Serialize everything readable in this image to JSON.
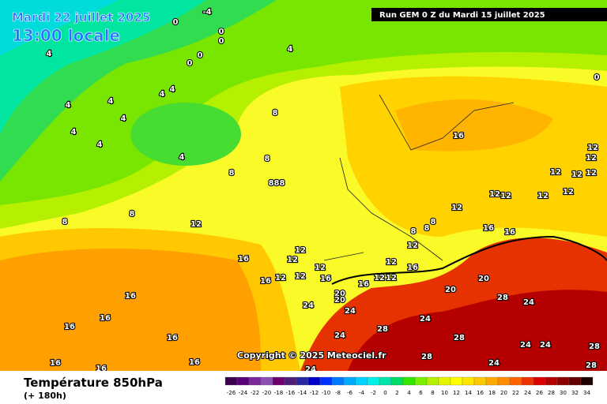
{
  "header": {
    "date": "Mardi 22 juillet 2025",
    "time": "13:00 locale",
    "run": "Run GEM 0 Z du Mardi 15 juillet 2025"
  },
  "copyright": "Copyright © 2025 Meteociel.fr",
  "legend": {
    "title": "Température 850hPa",
    "subtitle": "(+ 180h)",
    "values": [
      -26,
      -24,
      -22,
      -20,
      -18,
      -16,
      -14,
      -12,
      -10,
      -8,
      -6,
      -4,
      -2,
      0,
      2,
      4,
      6,
      8,
      10,
      12,
      14,
      16,
      18,
      20,
      22,
      24,
      26,
      28,
      30,
      32,
      34
    ],
    "colors": [
      "#3c0050",
      "#5a0078",
      "#78289a",
      "#8c50b4",
      "#6e006e",
      "#501e78",
      "#2828a0",
      "#0000c8",
      "#0032ff",
      "#0078ff",
      "#00aaff",
      "#00d2ff",
      "#00f0e6",
      "#00e6aa",
      "#00dc64",
      "#32e600",
      "#78f000",
      "#b4f000",
      "#e6f500",
      "#ffff00",
      "#ffe600",
      "#ffc800",
      "#ffaa00",
      "#ff8c00",
      "#ff6400",
      "#f03200",
      "#dc0000",
      "#b40000",
      "#8c0000",
      "#640000",
      "#1e0000"
    ]
  },
  "map_labels": [
    "-4",
    "0",
    "0",
    "0",
    "0",
    "0",
    "4",
    "4",
    "4",
    "4",
    "4",
    "4",
    "4",
    "4",
    "4",
    "4",
    "8",
    "8",
    "8",
    "8",
    "8",
    "888",
    "12",
    "12",
    "12",
    "12",
    "12",
    "12",
    "16",
    "16",
    "16",
    "16",
    "16",
    "16",
    "16",
    "16",
    "16",
    "16",
    "20",
    "20",
    "24",
    "24",
    "24",
    "28",
    "24",
    "28",
    "28",
    "24",
    "24",
    "24",
    "28",
    "24",
    "28",
    "28",
    "24",
    "20",
    "20",
    "16",
    "16",
    "16",
    "12",
    "12",
    "12",
    "12",
    "12",
    "12",
    "12",
    "12",
    "12",
    "12",
    "12",
    "8",
    "8",
    "8",
    "12",
    "12",
    "16",
    "16",
    "12",
    "0"
  ]
}
